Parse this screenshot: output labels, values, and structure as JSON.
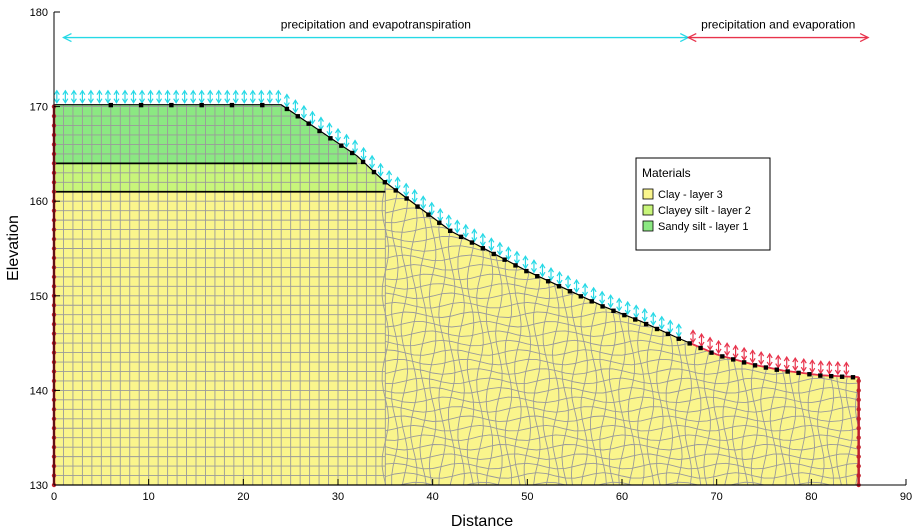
{
  "chart_data": {
    "type": "diagram",
    "xlabel": "Distance",
    "ylabel": "Elevation",
    "xlim": [
      0,
      90
    ],
    "ylim": [
      130,
      180
    ],
    "x_ticks": [
      0,
      10,
      20,
      30,
      40,
      50,
      60,
      70,
      80,
      90
    ],
    "y_ticks": [
      130,
      140,
      150,
      160,
      170,
      180
    ],
    "ground_surface": [
      [
        0,
        170.2
      ],
      [
        24,
        170.2
      ],
      [
        32,
        164.8
      ],
      [
        35,
        162
      ],
      [
        42,
        156.8
      ],
      [
        50,
        152.6
      ],
      [
        58,
        148.9
      ],
      [
        62,
        147.3
      ],
      [
        66,
        145.5
      ],
      [
        70,
        143.8
      ],
      [
        74,
        142.7
      ],
      [
        77,
        142.1
      ],
      [
        81,
        141.6
      ],
      [
        85,
        141.4
      ]
    ],
    "layer_boundaries": [
      {
        "points": [
          [
            0,
            164
          ],
          [
            32,
            164
          ]
        ]
      },
      {
        "points": [
          [
            0,
            161
          ],
          [
            35,
            161
          ]
        ]
      }
    ],
    "boundary_conditions": [
      {
        "label": "precipitation and evapotranspiration",
        "x_range": [
          1,
          67
        ],
        "elevation": 177.3,
        "color": "#26d9e6"
      },
      {
        "label": "precipitation and evaporation",
        "x_range": [
          67,
          86
        ],
        "elevation": 177.3,
        "color": "#e8334c"
      }
    ],
    "legend": {
      "title": "Materials",
      "position": "right",
      "entries": [
        {
          "label": "Clay - layer 3",
          "color": "#faf58c"
        },
        {
          "label": "Clayey silt - layer 2",
          "color": "#c8f57a"
        },
        {
          "label": "Sandy silt - layer 1",
          "color": "#8be882"
        }
      ]
    },
    "mesh_color": "#9a9a9a",
    "lateral_boundary_color": "#c0202c"
  }
}
